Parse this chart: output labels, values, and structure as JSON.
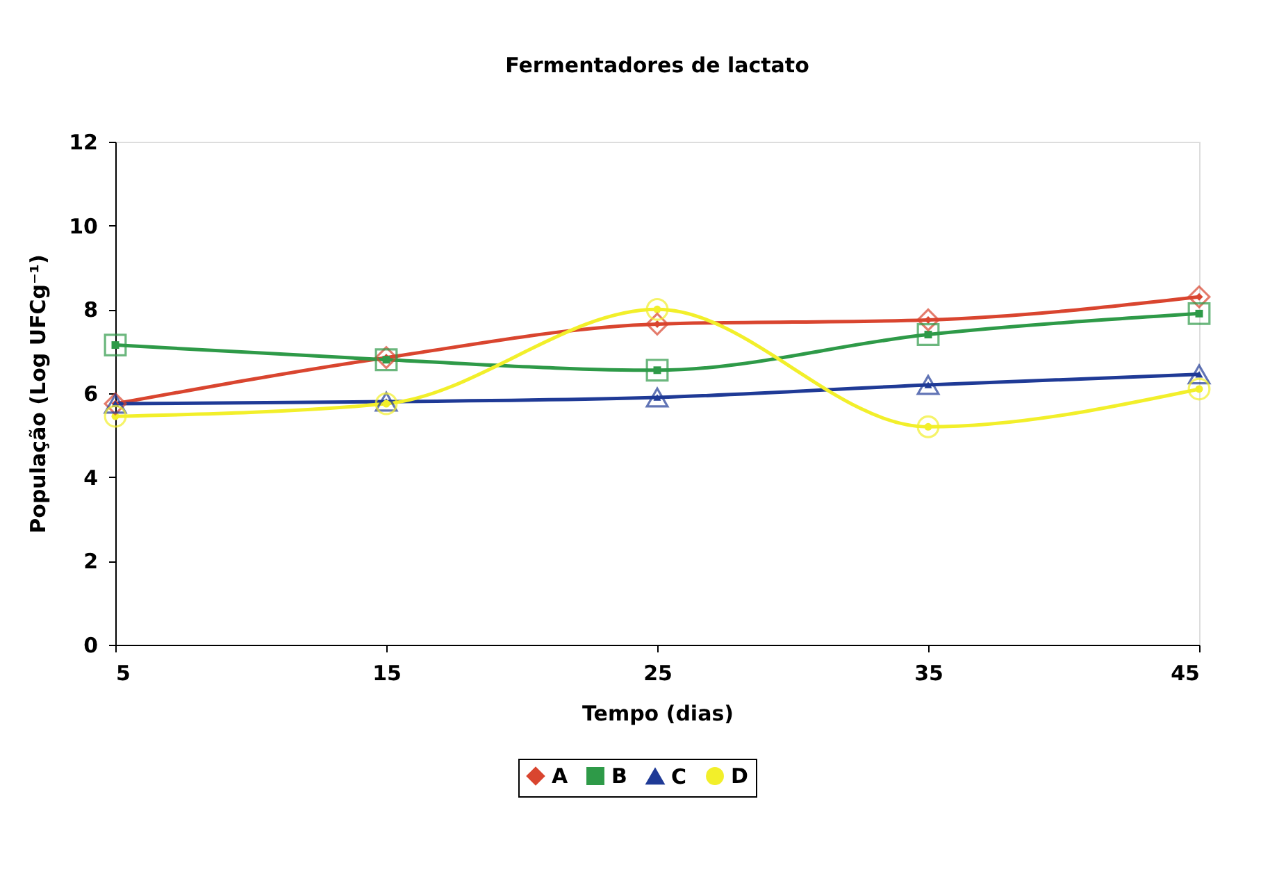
{
  "chart_data": {
    "type": "line",
    "title": "Fermentadores de lactato",
    "xlabel": "Tempo (dias)",
    "ylabel": "População (Log UFCg⁻¹)",
    "x": [
      5,
      15,
      25,
      35,
      45
    ],
    "xlim": [
      5,
      45
    ],
    "xticks": [
      5,
      15,
      25,
      35,
      45
    ],
    "ylim": [
      0,
      12
    ],
    "yticks": [
      0,
      2,
      4,
      6,
      8,
      10,
      12
    ],
    "grid": false,
    "legend": "bottom",
    "line_style": "solid",
    "series": [
      {
        "name": "A",
        "color": "#d9452f",
        "marker": "diamond",
        "values": [
          5.75,
          6.85,
          7.65,
          7.75,
          8.3
        ]
      },
      {
        "name": "B",
        "color": "#2e9a48",
        "marker": "square",
        "values": [
          7.15,
          6.8,
          6.55,
          7.4,
          7.9
        ]
      },
      {
        "name": "C",
        "color": "#1f3a96",
        "marker": "triangle",
        "values": [
          5.75,
          5.8,
          5.9,
          6.2,
          6.45
        ]
      },
      {
        "name": "D",
        "color": "#f2ef2a",
        "marker": "circle",
        "values": [
          5.45,
          5.75,
          8.0,
          5.2,
          6.1
        ]
      }
    ]
  }
}
